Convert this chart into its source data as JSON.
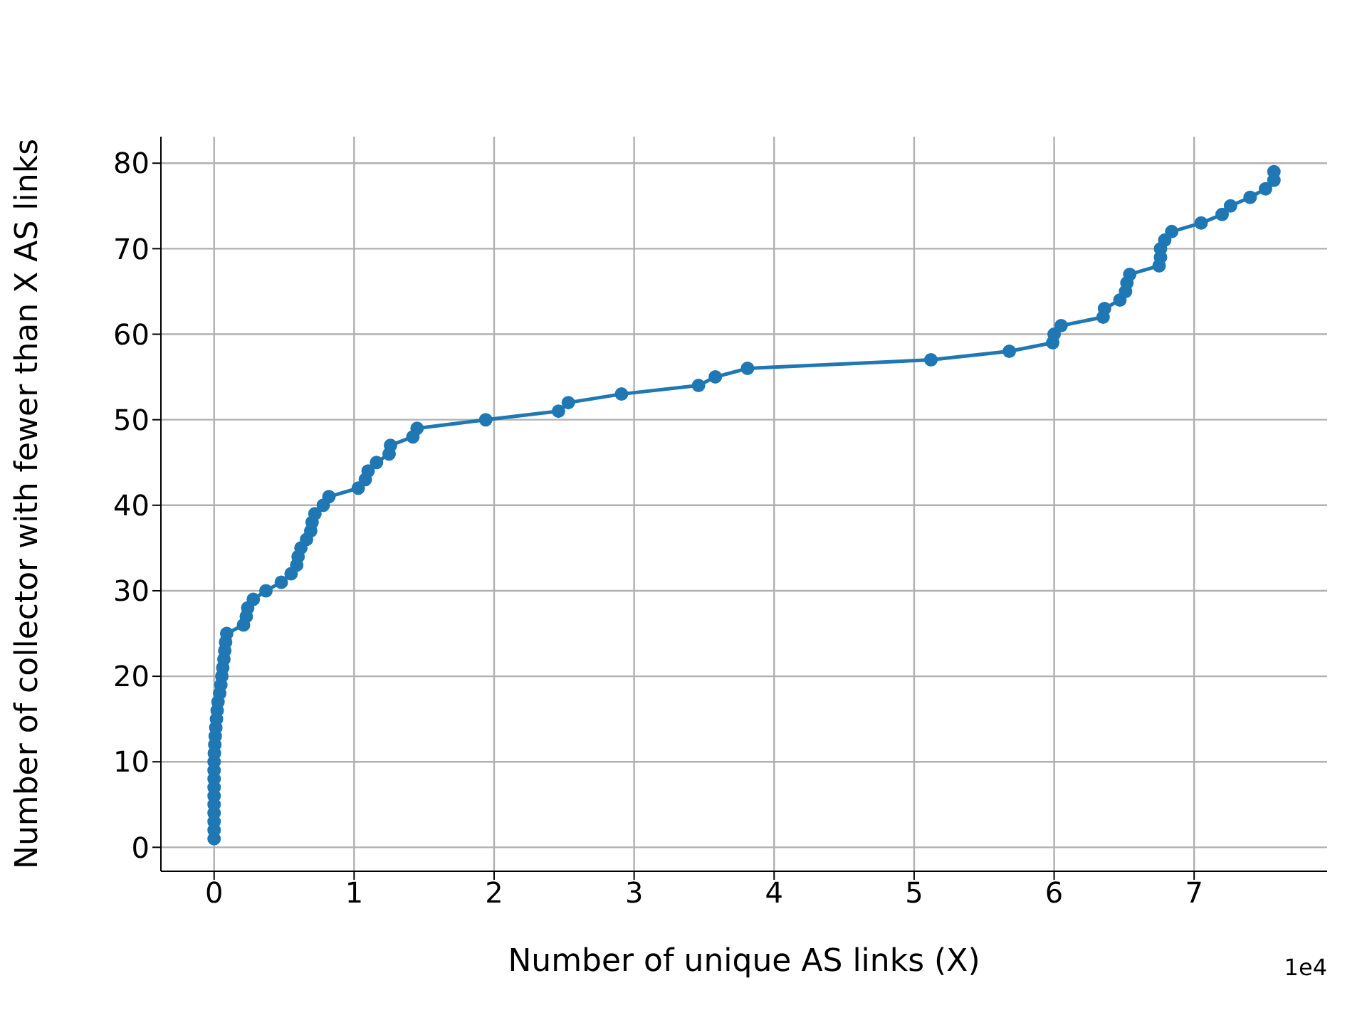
{
  "chart_data": {
    "type": "line",
    "xlabel": "Number of unique AS links (X)",
    "ylabel": "Number of collector with fewer than X AS links",
    "annotations": [
      "1e4"
    ],
    "xlim": [
      -0.38,
      7.95
    ],
    "ylim": [
      -2.8,
      83.1
    ],
    "xticks": [
      0,
      1,
      2,
      3,
      4,
      5,
      6,
      7
    ],
    "yticks": [
      0,
      10,
      20,
      30,
      40,
      50,
      60,
      70,
      80
    ],
    "grid": true,
    "marker": "circle",
    "line_style": "solid",
    "series": [
      {
        "color": "#1f77b4",
        "x": [
          0,
          0,
          0,
          0,
          0,
          0,
          0,
          0,
          0,
          0,
          0.002,
          0.005,
          0.008,
          0.012,
          0.017,
          0.022,
          0.028,
          0.04,
          0.048,
          0.055,
          0.062,
          0.07,
          0.076,
          0.082,
          0.09,
          0.21,
          0.23,
          0.24,
          0.28,
          0.37,
          0.48,
          0.55,
          0.59,
          0.6,
          0.62,
          0.66,
          0.69,
          0.7,
          0.72,
          0.78,
          0.82,
          1.03,
          1.08,
          1.1,
          1.16,
          1.25,
          1.26,
          1.42,
          1.45,
          1.94,
          2.46,
          2.53,
          2.91,
          3.46,
          3.58,
          3.81,
          5.12,
          5.68,
          5.99,
          6.0,
          6.05,
          6.35,
          6.36,
          6.47,
          6.51,
          6.52,
          6.54,
          6.75,
          6.76,
          6.76,
          6.79,
          6.84,
          7.05,
          7.2,
          7.26,
          7.4,
          7.51,
          7.57,
          7.57
        ],
        "values": [
          1,
          2,
          3,
          4,
          5,
          6,
          7,
          8,
          9,
          10,
          11,
          12,
          13,
          14,
          15,
          16,
          17,
          18,
          19,
          20,
          21,
          22,
          23,
          24,
          25,
          26,
          27,
          28,
          29,
          30,
          31,
          32,
          33,
          34,
          35,
          36,
          37,
          38,
          39,
          40,
          41,
          42,
          43,
          44,
          45,
          46,
          47,
          48,
          49,
          50,
          51,
          52,
          53,
          54,
          55,
          56,
          57,
          58,
          59,
          60,
          61,
          62,
          63,
          64,
          65,
          66,
          67,
          68,
          69,
          70,
          71,
          72,
          73,
          74,
          75,
          76,
          77,
          78,
          79
        ]
      }
    ]
  }
}
